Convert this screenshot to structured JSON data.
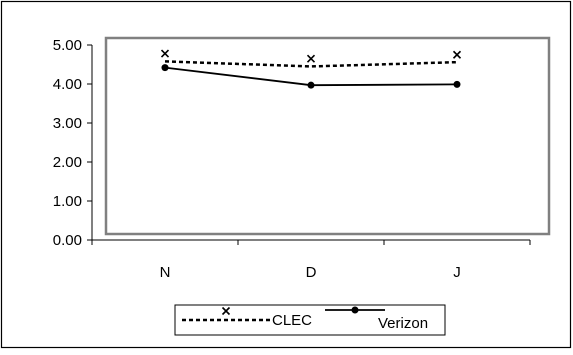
{
  "chart_data": {
    "type": "line",
    "categories": [
      "N",
      "D",
      "J"
    ],
    "ylim": [
      0,
      5
    ],
    "yticks": [
      0,
      1,
      2,
      3,
      4,
      5
    ],
    "ytick_labels": [
      "0.00",
      "1.00",
      "2.00",
      "3.00",
      "4.00",
      "5.00"
    ],
    "grid": false,
    "legend_position": "bottom",
    "series": [
      {
        "name": "CLEC",
        "values": [
          4.58,
          4.45,
          4.56
        ],
        "marker_values": [
          4.78,
          4.65,
          4.75
        ],
        "line_style": "dashed",
        "marker": "x",
        "color": "#000000"
      },
      {
        "name": "Verizon",
        "values": [
          4.42,
          3.97,
          3.99
        ],
        "line_style": "solid",
        "marker": "circle",
        "color": "#000000"
      }
    ]
  }
}
